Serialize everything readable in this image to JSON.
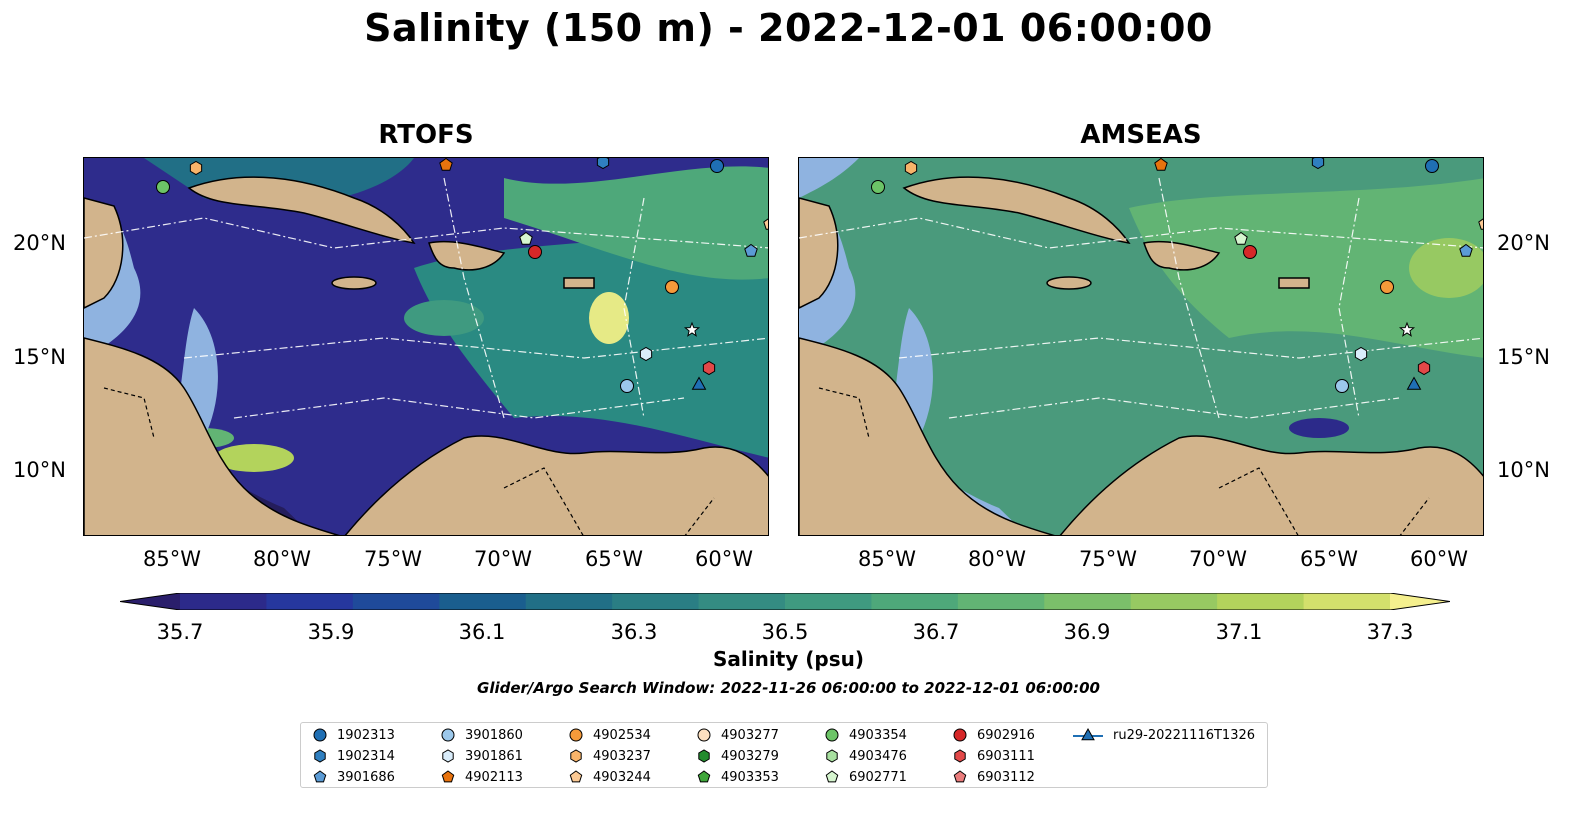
{
  "title": "Salinity (150 m) - 2022-12-01 06:00:00",
  "panels": [
    {
      "title": "RTOFS"
    },
    {
      "title": "AMSEAS"
    }
  ],
  "lon_labels": [
    "85°W",
    "80°W",
    "75°W",
    "70°W",
    "65°W",
    "60°W"
  ],
  "lat_labels": [
    "20°N",
    "15°N",
    "10°N"
  ],
  "colorbar": {
    "label": "Salinity (psu)",
    "ticks": [
      "35.7",
      "35.9",
      "36.1",
      "36.3",
      "36.5",
      "36.7",
      "36.9",
      "37.1",
      "37.3"
    ],
    "colors": [
      "#2a1e6b",
      "#2c2a8a",
      "#26379e",
      "#1f4a9a",
      "#1a5e8e",
      "#216f86",
      "#2a7e84",
      "#348c82",
      "#3f9a80",
      "#4ea87a",
      "#62b474",
      "#7bbf6a",
      "#97c962",
      "#b3d35c",
      "#d3e06c",
      "#f5f08e"
    ]
  },
  "search_window": "Glider/Argo Search Window: 2022-11-26 06:00:00 to 2022-12-01 06:00:00",
  "colors": {
    "land": "#d2b48c",
    "shelf": "#8fb3e0",
    "rtofs_sea": "#2e2c8c",
    "amseas_sea": "#4a9a7c"
  },
  "legend": [
    {
      "label": "1902313",
      "marker": "circle",
      "color": "#1f6fb4"
    },
    {
      "label": "1902314",
      "marker": "hexagon",
      "color": "#2f7fc0"
    },
    {
      "label": "3901686",
      "marker": "pentagon",
      "color": "#5b9bd5"
    },
    {
      "label": "3901860",
      "marker": "circle",
      "color": "#9cc8eb"
    },
    {
      "label": "3901861",
      "marker": "hexagon",
      "color": "#d9ecfa"
    },
    {
      "label": "4902113",
      "marker": "pentagon",
      "color": "#e8730e"
    },
    {
      "label": "4902534",
      "marker": "circle",
      "color": "#f59a3a"
    },
    {
      "label": "4903237",
      "marker": "hexagon",
      "color": "#f8b46a"
    },
    {
      "label": "4903244",
      "marker": "pentagon",
      "color": "#fbc994"
    },
    {
      "label": "4903277",
      "marker": "circle",
      "color": "#fde0c0"
    },
    {
      "label": "4903279",
      "marker": "hexagon",
      "color": "#238b2e"
    },
    {
      "label": "4903353",
      "marker": "pentagon",
      "color": "#3fa63a"
    },
    {
      "label": "4903354",
      "marker": "circle",
      "color": "#6cc467"
    },
    {
      "label": "4903476",
      "marker": "hexagon",
      "color": "#a8e0a0"
    },
    {
      "label": "6902771",
      "marker": "pentagon",
      "color": "#d6f5cf"
    },
    {
      "label": "6902916",
      "marker": "circle",
      "color": "#d62728"
    },
    {
      "label": "6903111",
      "marker": "hexagon",
      "color": "#e24848"
    },
    {
      "label": "6903112",
      "marker": "pentagon",
      "color": "#ea7c7c"
    },
    {
      "label": "ru29-20221116T1326",
      "marker": "triangle-line",
      "color": "#1f6fb4"
    }
  ]
}
